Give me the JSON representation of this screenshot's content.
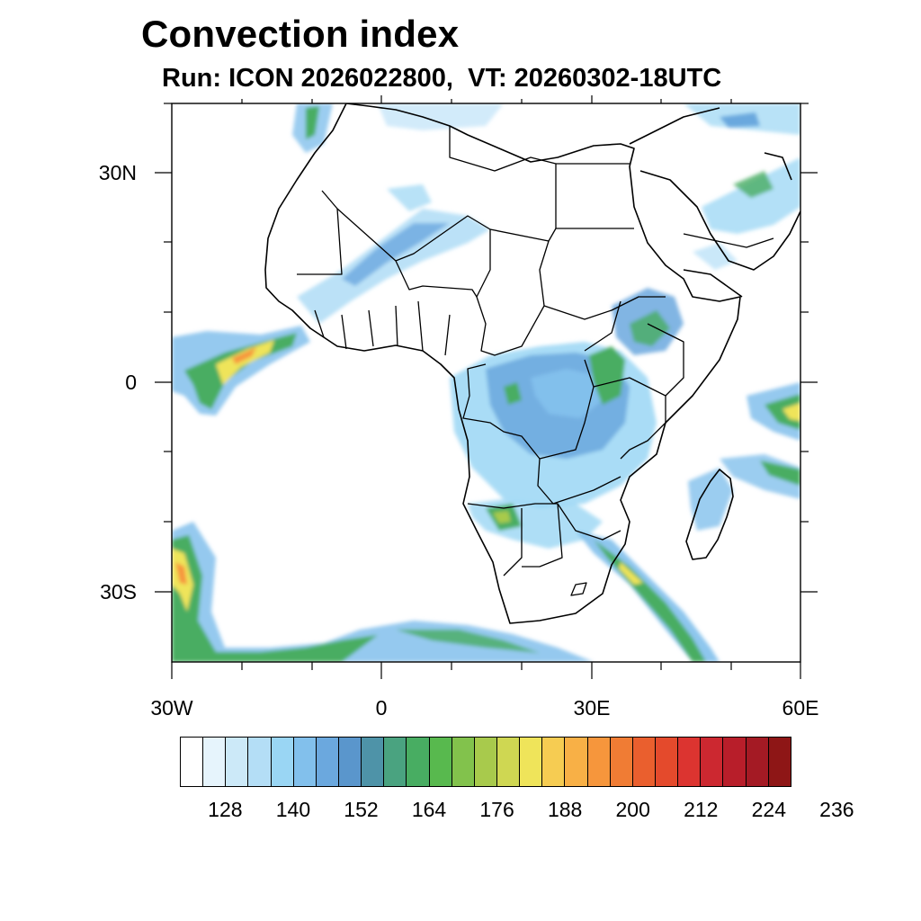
{
  "title": "Convection index",
  "subtitle": "Run: ICON 2026022800,  VT: 20260302-18UTC",
  "map": {
    "lat_labels": [
      "30N",
      "0",
      "30S"
    ],
    "lon_labels": [
      "30W",
      "0",
      "30E",
      "60E"
    ]
  },
  "colorbar": {
    "colors": [
      "#ffffff",
      "#e6f4fc",
      "#cce9f8",
      "#b4def6",
      "#9ad6f4",
      "#82c0ec",
      "#6ba8de",
      "#5a96cc",
      "#4e93a8",
      "#4aa380",
      "#48ad62",
      "#58b94e",
      "#82c24c",
      "#a8ca4c",
      "#cfd752",
      "#efe45a",
      "#f6cc52",
      "#f8b046",
      "#f6963c",
      "#f07c34",
      "#ea5f2e",
      "#e44a2c",
      "#dc3430",
      "#cc2830",
      "#b81e2a",
      "#a41a24",
      "#8e1616"
    ],
    "labels": [
      "128",
      "140",
      "152",
      "164",
      "176",
      "188",
      "200",
      "212",
      "224",
      "236"
    ]
  }
}
